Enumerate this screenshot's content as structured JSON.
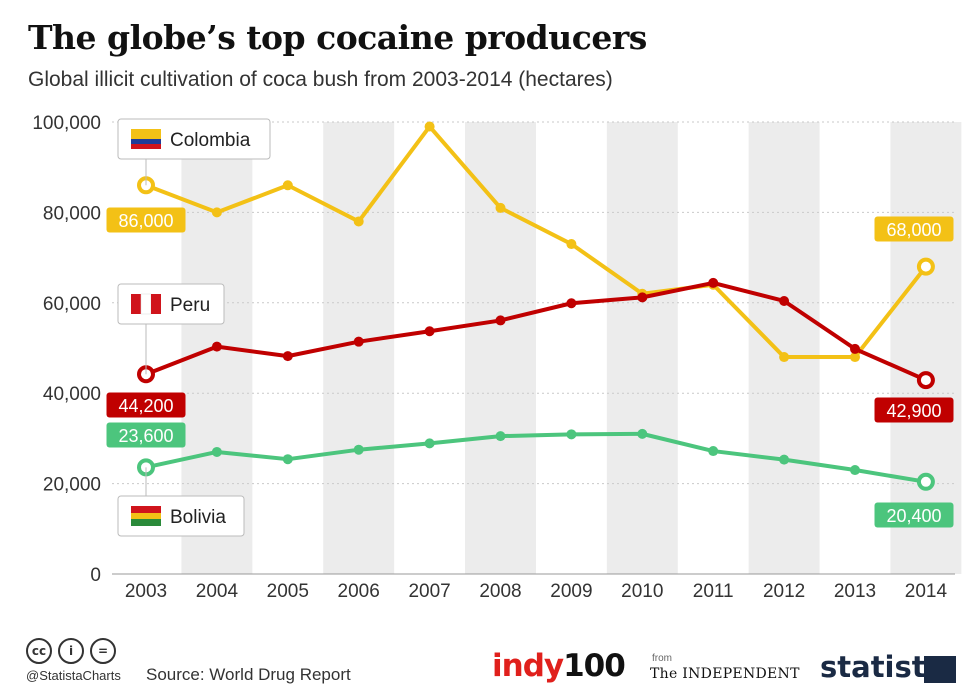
{
  "header": {
    "title": "The globe’s top cocaine producers",
    "subtitle": "Global illicit cultivation of coca bush from 2003-2014 (hectares)"
  },
  "chart_data": {
    "type": "line",
    "title": "The globe’s top cocaine producers",
    "subtitle": "Global illicit cultivation of coca bush from 2003-2014 (hectares)",
    "categories": [
      "2003",
      "2004",
      "2005",
      "2006",
      "2007",
      "2008",
      "2009",
      "2010",
      "2011",
      "2012",
      "2013",
      "2014"
    ],
    "ylim": [
      0,
      100000
    ],
    "yticks": [
      0,
      20000,
      40000,
      60000,
      80000,
      100000
    ],
    "ytick_labels": [
      "0",
      "20,000",
      "40,000",
      "60,000",
      "80,000",
      "100,000"
    ],
    "grid": true,
    "series": [
      {
        "name": "Colombia",
        "color": "#f3c116",
        "flag": "colombia-flag-icon",
        "values": [
          86000,
          80000,
          86000,
          78000,
          99000,
          81000,
          73000,
          62000,
          64000,
          48000,
          48000,
          68000
        ],
        "start_label": "86,000",
        "end_label": "68,000"
      },
      {
        "name": "Peru",
        "color": "#c00000",
        "flag": "peru-flag-icon",
        "values": [
          44200,
          50300,
          48200,
          51400,
          53700,
          56100,
          59900,
          61200,
          64400,
          60400,
          49800,
          42900
        ],
        "start_label": "44,200",
        "end_label": "42,900"
      },
      {
        "name": "Bolivia",
        "color": "#4cc57d",
        "flag": "bolivia-flag-icon",
        "values": [
          23600,
          27000,
          25400,
          27500,
          28900,
          30500,
          30900,
          31000,
          27200,
          25300,
          23000,
          20400
        ],
        "start_label": "23,600",
        "end_label": "20,400"
      }
    ]
  },
  "footer": {
    "cc_icons": [
      "cc",
      "i",
      "="
    ],
    "handle": "@StatistaCharts",
    "source": "Source: World Drug Report",
    "indy_brand": "indy",
    "indy_num": "100",
    "from_label": "from",
    "independent": "The INDEPENDENT",
    "statista": "statista"
  }
}
